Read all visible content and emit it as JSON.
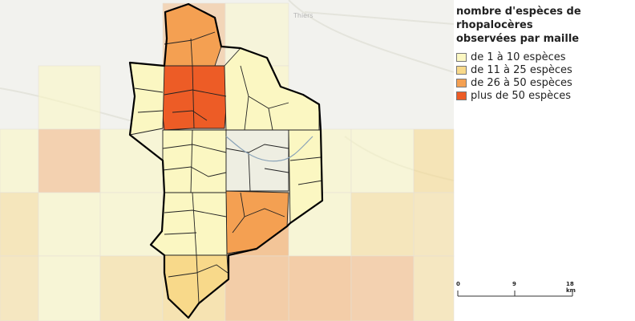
{
  "legend": {
    "title": [
      "nombre d'espèces de",
      "rhopalocères",
      "observées par maille"
    ],
    "items": [
      {
        "label": "de 1 à 10 espèces",
        "color": "#fbf7c2"
      },
      {
        "label": "de 11 à 25 espèces",
        "color": "#f8d98a"
      },
      {
        "label": "de 26 à 50 espèces",
        "color": "#f4a052"
      },
      {
        "label": "plus de 50 espèces",
        "color": "#ed5c26"
      }
    ]
  },
  "scale": {
    "labels": [
      "0",
      "9",
      "18 km"
    ]
  },
  "colors": {
    "background": "#f2f2ee",
    "boundary": "#000000",
    "class1": "#fbf7c2",
    "class2": "#f8d98a",
    "class3": "#f4a052",
    "class4": "#ed5c26"
  }
}
